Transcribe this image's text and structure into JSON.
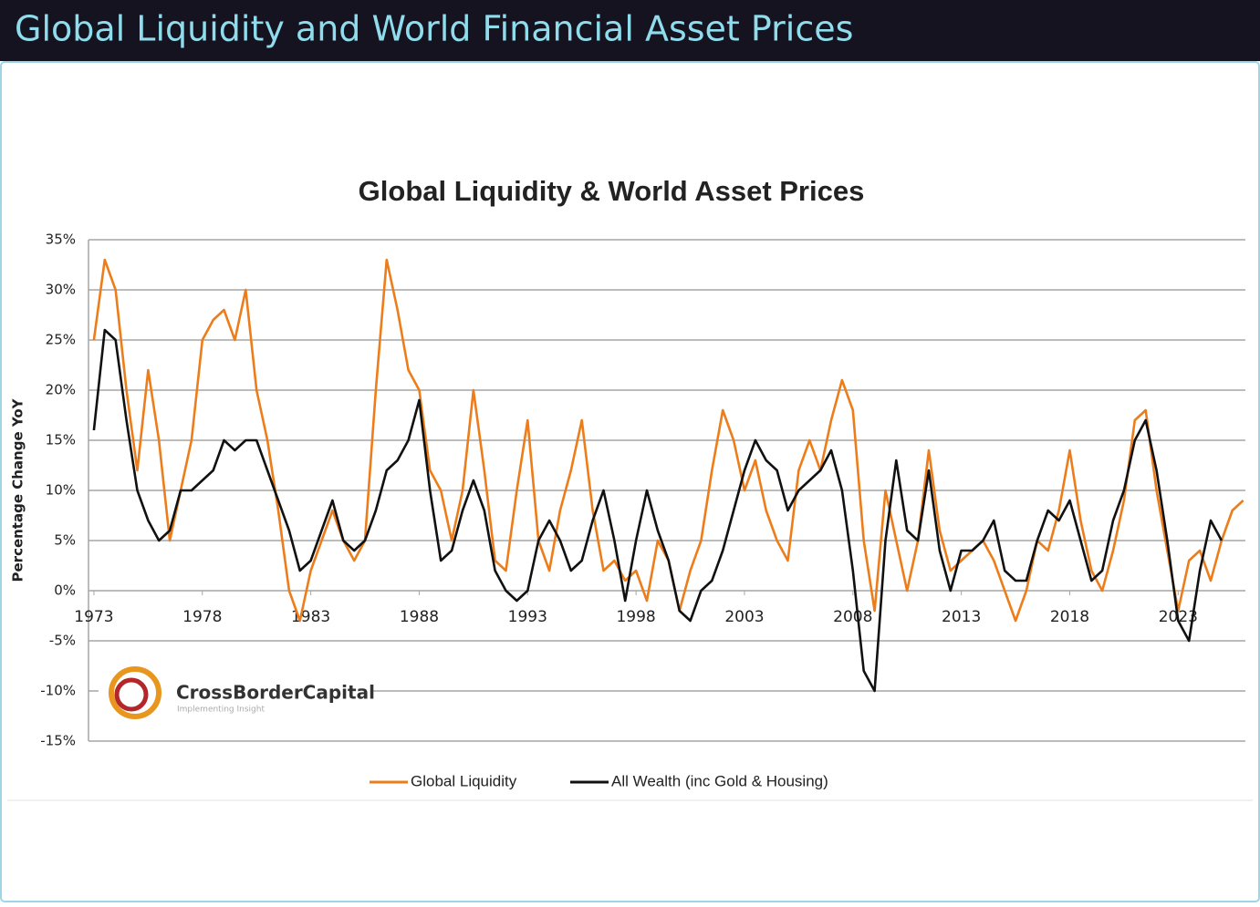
{
  "header": {
    "title": "Global Liquidity and World Financial Asset Prices"
  },
  "logo": {
    "name": "CrossBorderCapital",
    "tagline": "Implementing Insight"
  },
  "chart_data": {
    "type": "line",
    "title": "Global Liquidity & World Asset Prices",
    "y_label": "Percentage Change YoY",
    "x": [
      1973,
      1973.5,
      1974,
      1974.5,
      1975,
      1975.5,
      1976,
      1976.5,
      1977,
      1977.5,
      1978,
      1978.5,
      1979,
      1979.5,
      1980,
      1980.5,
      1981,
      1981.5,
      1982,
      1982.5,
      1983,
      1983.5,
      1984,
      1984.5,
      1985,
      1985.5,
      1986,
      1986.5,
      1987,
      1987.5,
      1988,
      1988.5,
      1989,
      1989.5,
      1990,
      1990.5,
      1991,
      1991.5,
      1992,
      1992.5,
      1993,
      1993.5,
      1994,
      1994.5,
      1995,
      1995.5,
      1996,
      1996.5,
      1997,
      1997.5,
      1998,
      1998.5,
      1999,
      1999.5,
      2000,
      2000.5,
      2001,
      2001.5,
      2002,
      2002.5,
      2003,
      2003.5,
      2004,
      2004.5,
      2005,
      2005.5,
      2006,
      2006.5,
      2007,
      2007.5,
      2008,
      2008.5,
      2009,
      2009.5,
      2010,
      2010.5,
      2011,
      2011.5,
      2012,
      2012.5,
      2013,
      2013.5,
      2014,
      2014.5,
      2015,
      2015.5,
      2016,
      2016.5,
      2017,
      2017.5,
      2018,
      2018.5,
      2019,
      2019.5,
      2020,
      2020.5,
      2021,
      2021.5,
      2022,
      2022.5,
      2023,
      2023.5,
      2024,
      2024.5,
      2025,
      2025.5,
      2026
    ],
    "series": [
      {
        "name": "Global Liquidity",
        "color": "#ed7d1a",
        "values": [
          25,
          33,
          30,
          20,
          12,
          22,
          15,
          5,
          10,
          15,
          25,
          27,
          28,
          25,
          30,
          20,
          15,
          8,
          0,
          -3,
          2,
          5,
          8,
          5,
          3,
          5,
          20,
          33,
          28,
          22,
          20,
          12,
          10,
          5,
          10,
          20,
          12,
          3,
          2,
          10,
          17,
          5,
          2,
          8,
          12,
          17,
          8,
          2,
          3,
          1,
          2,
          -1,
          5,
          3,
          -2,
          2,
          5,
          12,
          18,
          15,
          10,
          13,
          8,
          5,
          3,
          12,
          15,
          12,
          17,
          21,
          18,
          5,
          -2,
          10,
          5,
          0,
          5,
          14,
          6,
          2,
          3,
          4,
          5,
          3,
          0,
          -3,
          0,
          5,
          4,
          8,
          14,
          7,
          2,
          0,
          4,
          9,
          17,
          18,
          10,
          4,
          -2,
          3,
          4,
          1,
          5,
          8,
          9
        ]
      },
      {
        "name": "All Wealth (inc Gold & Housing)",
        "color": "#111111",
        "values": [
          16,
          26,
          25,
          17,
          10,
          7,
          5,
          6,
          10,
          10,
          11,
          12,
          15,
          14,
          15,
          15,
          12,
          9,
          6,
          2,
          3,
          6,
          9,
          5,
          4,
          5,
          8,
          12,
          13,
          15,
          19,
          10,
          3,
          4,
          8,
          11,
          8,
          2,
          0,
          -1,
          0,
          5,
          7,
          5,
          2,
          3,
          7,
          10,
          5,
          -1,
          5,
          10,
          6,
          3,
          -2,
          -3,
          0,
          1,
          4,
          8,
          12,
          15,
          13,
          12,
          8,
          10,
          11,
          12,
          14,
          10,
          2,
          -8,
          -10,
          5,
          13,
          6,
          5,
          12,
          4,
          0,
          4,
          4,
          5,
          7,
          2,
          1,
          1,
          5,
          8,
          7,
          9,
          5,
          1,
          2,
          7,
          10,
          15,
          17,
          12,
          5,
          -3,
          -5,
          2,
          7,
          5,
          null,
          null
        ]
      }
    ],
    "xlim": [
      1972.75,
      2026.1
    ],
    "xticks": [
      1973,
      1978,
      1983,
      1988,
      1993,
      1998,
      2003,
      2008,
      2013,
      2018,
      2023
    ],
    "ylim": [
      -15,
      35
    ],
    "yticks": [
      {
        "value": -15,
        "label": "-15%"
      },
      {
        "value": -10,
        "label": "-10%"
      },
      {
        "value": -5,
        "label": "-5%"
      },
      {
        "value": 0,
        "label": "0%"
      },
      {
        "value": 5,
        "label": "5%"
      },
      {
        "value": 10,
        "label": "10%"
      },
      {
        "value": 15,
        "label": "15%"
      },
      {
        "value": 20,
        "label": "20%"
      },
      {
        "value": 25,
        "label": "25%"
      },
      {
        "value": 30,
        "label": "30%"
      },
      {
        "value": 35,
        "label": "35%"
      }
    ],
    "grid": true,
    "legend": "bottom"
  }
}
